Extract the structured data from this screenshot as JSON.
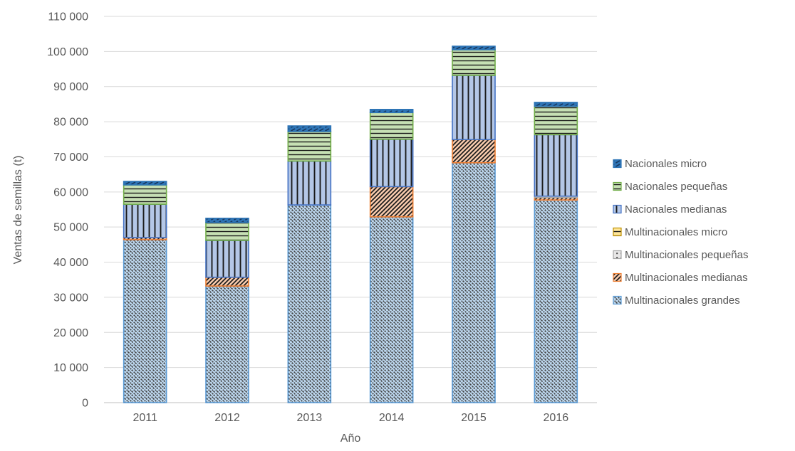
{
  "chart_data": {
    "type": "bar",
    "stacked": true,
    "title": "",
    "xlabel": "Año",
    "ylabel": "Ventas de semillas (t)",
    "ylim": [
      0,
      110000
    ],
    "ytick_step": 10000,
    "ytick_labels": [
      "0",
      "10 000",
      "20 000",
      "30 000",
      "40 000",
      "50 000",
      "60 000",
      "70 000",
      "80 000",
      "90 000",
      "100 000",
      "110 000"
    ],
    "grid": true,
    "legend_position": "right",
    "categories": [
      "2011",
      "2012",
      "2013",
      "2014",
      "2015",
      "2016"
    ],
    "series": [
      {
        "name": "Nacionales micro",
        "values": [
          1000,
          1200,
          1600,
          900,
          1000,
          1100
        ],
        "fill": "#2E75B6",
        "border": "#2E75B6",
        "pattern": "diag-dash-up",
        "pattern_color": "#17375E"
      },
      {
        "name": "Nacionales pequeñas",
        "values": [
          5500,
          5100,
          8400,
          7600,
          7300,
          8100
        ],
        "fill": "#C6E0B4",
        "border": "#70AD47",
        "pattern": "horizontal-lines",
        "pattern_color": "#1A1A1A"
      },
      {
        "name": "Nacionales medianas",
        "values": [
          9500,
          10500,
          12500,
          13500,
          18300,
          17500
        ],
        "fill": "#B4C7E7",
        "border": "#4472C4",
        "pattern": "vertical-lines",
        "pattern_color": "#1A1A1A"
      },
      {
        "name": "Multinacionales micro",
        "values": [
          0,
          0,
          0,
          0,
          0,
          0
        ],
        "fill": "#FFE699",
        "border": "#BF8F00",
        "pattern": "horizontal-lines",
        "pattern_color": "#1A1A1A"
      },
      {
        "name": "Multinacionales pequeñas",
        "values": [
          0,
          0,
          0,
          0,
          0,
          400
        ],
        "fill": "#E7E6E6",
        "border": "#A6A6A6",
        "pattern": "dots",
        "pattern_color": "#404040"
      },
      {
        "name": "Multinacionales medianas",
        "values": [
          600,
          2500,
          0,
          8600,
          6600,
          700
        ],
        "fill": "#F8CBAD",
        "border": "#ED7D31",
        "pattern": "diag-hatch-up",
        "pattern_color": "#1A1A1A"
      },
      {
        "name": "Multinacionales grandes",
        "values": [
          46400,
          33200,
          56300,
          52900,
          68300,
          57700
        ],
        "fill": "#BDD7EE",
        "border": "#5B9BD5",
        "pattern": "diag-dash-down",
        "pattern_color": "#404040"
      }
    ],
    "totals": [
      63000,
      52500,
      78800,
      83500,
      101500,
      85500
    ]
  },
  "colors": {
    "gridline": "#D9D9D9",
    "axis_line": "#BFBFBF",
    "text": "#595959",
    "background": "#FFFFFF"
  }
}
